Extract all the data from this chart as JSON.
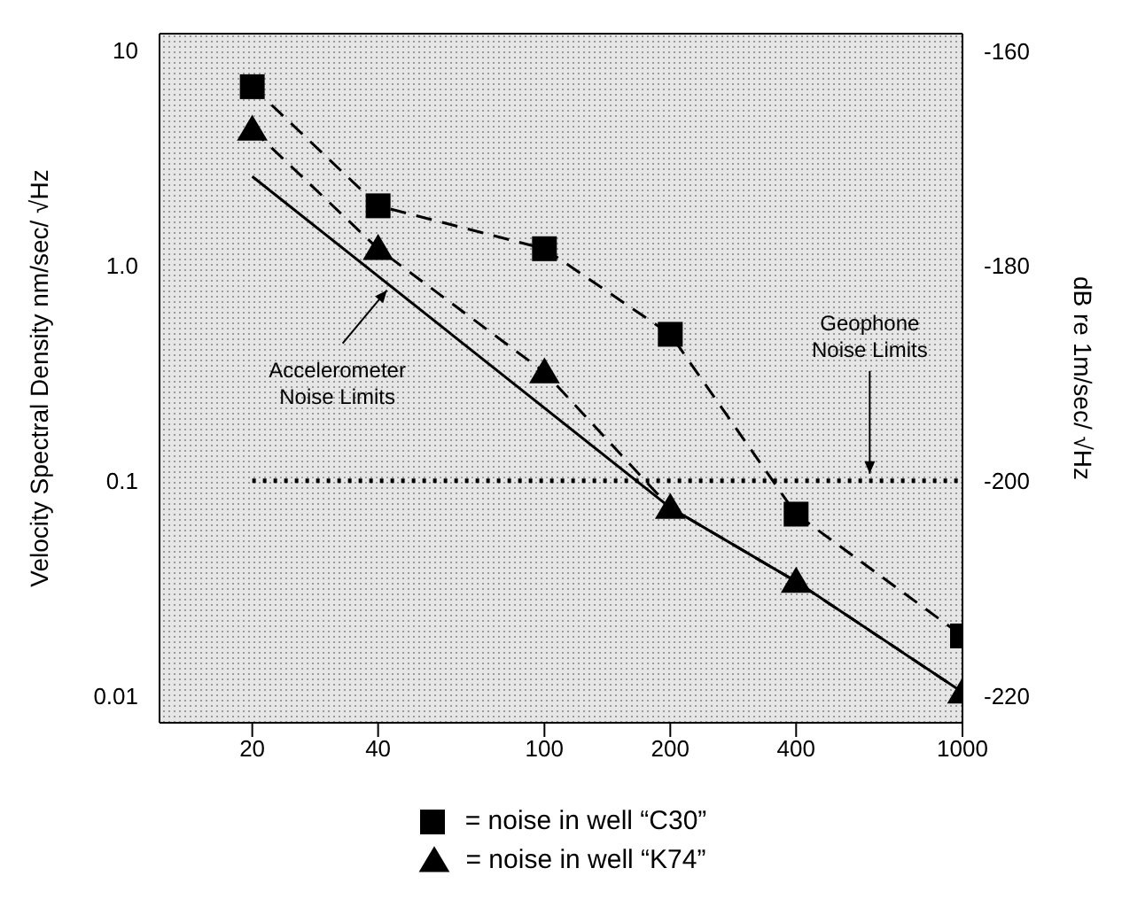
{
  "chart_data": {
    "type": "line",
    "ylabel": "Velocity Spectral Density nm/sec/ √Hz",
    "y2label": "dB re 1m/sec/ √Hz",
    "log": "xy",
    "grid": false,
    "legend": "bottom",
    "xlim": [
      12,
      1000
    ],
    "xticks": [
      20,
      40,
      100,
      200,
      400,
      1000
    ],
    "ylim": [
      0.0075,
      12
    ],
    "yticks": [
      0.01,
      0.1,
      {
        "value": 1,
        "label": "1.0"
      },
      10
    ],
    "y2lim": [
      -222.5,
      -158.4
    ],
    "y2ticks": [
      -160,
      -180,
      -200,
      -220
    ],
    "series": [
      {
        "name": "= noise in well “C30”",
        "color": "#000000",
        "marker": "square",
        "line_style": "dashed",
        "x": [
          20,
          40,
          100,
          200,
          400,
          1000
        ],
        "values": [
          6.8,
          1.9,
          1.2,
          0.48,
          0.07,
          0.019
        ]
      },
      {
        "name": "= noise in well “K74”",
        "color": "#000000",
        "marker": "triangle",
        "line_style": "dashed",
        "x": [
          20,
          40,
          100,
          200,
          400,
          1000
        ],
        "values": [
          4.3,
          1.2,
          0.32,
          0.075,
          0.034,
          0.0104
        ]
      },
      {
        "color": "#000000",
        "marker": "none",
        "line_style": "solid",
        "x": [
          20,
          200,
          400,
          1000
        ],
        "values": [
          2.6,
          0.075,
          0.034,
          0.0104
        ]
      },
      {
        "color": "#000000",
        "marker": "none",
        "line_style": "dotted",
        "x": [
          20,
          1000
        ],
        "values": [
          0.1,
          0.1
        ]
      }
    ],
    "annotations": [
      {
        "text": "Accelerometer\nNoise Limits",
        "x": 42,
        "y": 0.83
      },
      {
        "text": "Geophone\nNoise Limits",
        "x": 600,
        "y": 0.1
      }
    ]
  }
}
